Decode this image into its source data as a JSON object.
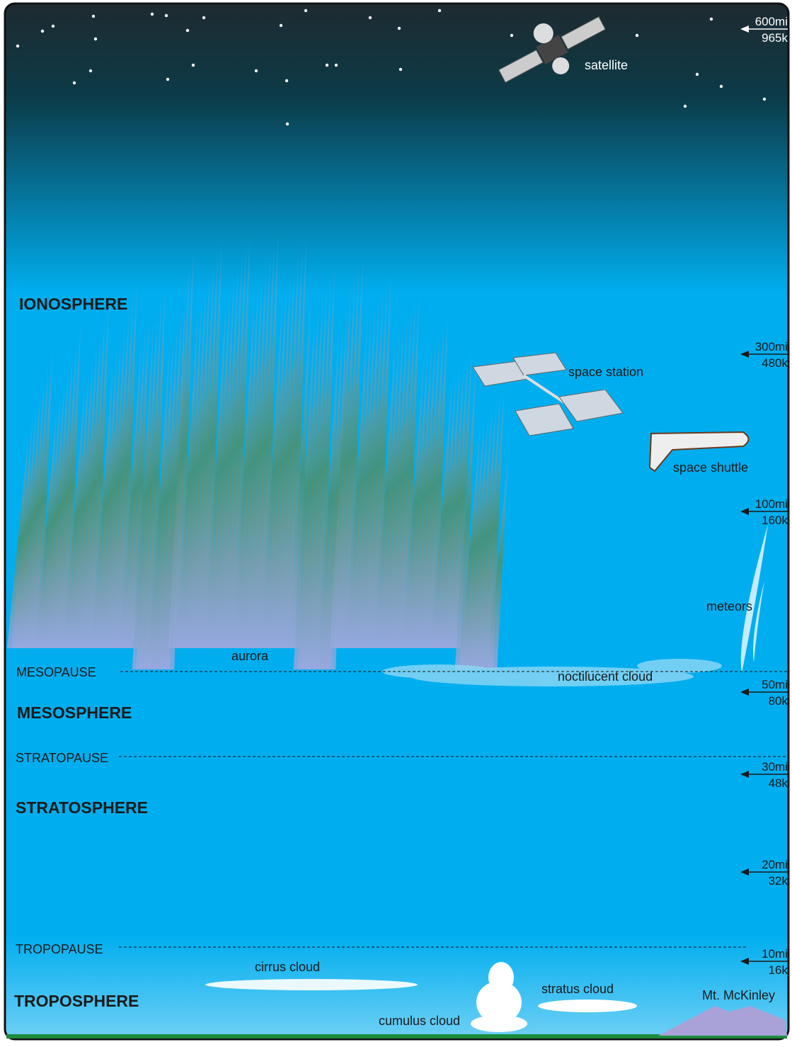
{
  "layers": [
    "IONOSPHERE",
    "MESOSPHERE",
    "STRATOSPHERE",
    "TROPOSPHERE"
  ],
  "boundaries": [
    "MESOPAUSE",
    "STRATOPAUSE",
    "TROPOPAUSE"
  ],
  "altitudes": [
    {
      "miles": "600mi",
      "km": "965k"
    },
    {
      "miles": "300mi",
      "km": "480k"
    },
    {
      "miles": "100mi",
      "km": "160k"
    },
    {
      "miles": "50mi",
      "km": "80k"
    },
    {
      "miles": "30mi",
      "km": "48k"
    },
    {
      "miles": "20mi",
      "km": "32k"
    },
    {
      "miles": "10mi",
      "km": "16k"
    }
  ],
  "objects": [
    "satellite",
    "space station",
    "space shuttle",
    "meteors",
    "aurora",
    "noctilucent cloud",
    "cirrus cloud",
    "cumulus cloud",
    "stratus cloud",
    "Mt. McKinley"
  ]
}
